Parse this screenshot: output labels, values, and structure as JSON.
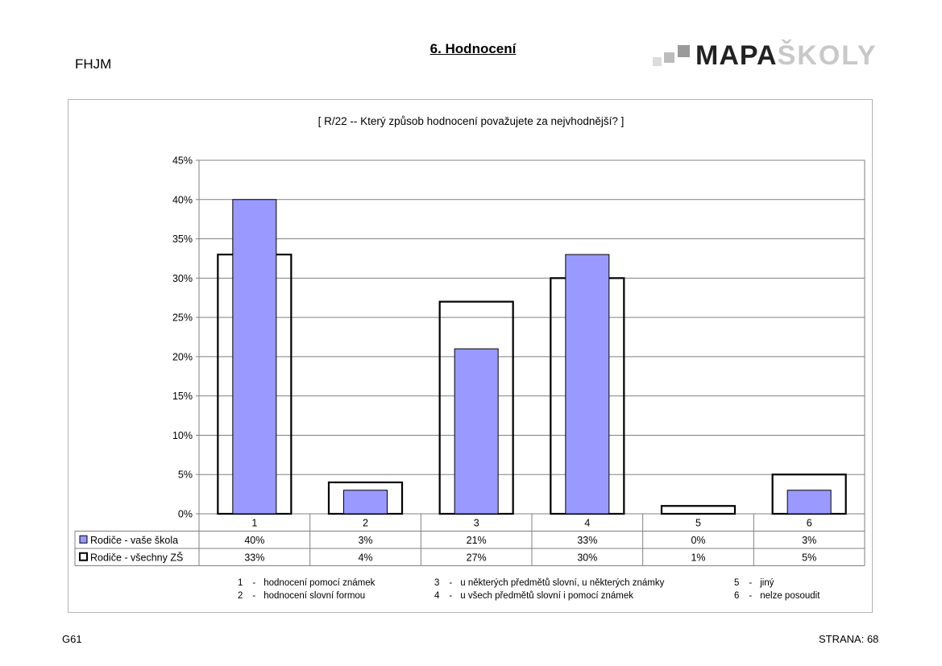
{
  "header": {
    "code": "FHJM",
    "title": "6. Hodnocení",
    "logo_dark": "MAPA",
    "logo_light": "ŠKOLY"
  },
  "chart_data": {
    "type": "bar",
    "title": "[ R/22 -- Který způsob hodnocení považujete za nejvhodnější? ]",
    "categories": [
      "1",
      "2",
      "3",
      "4",
      "5",
      "6"
    ],
    "series": [
      {
        "name": "Rodiče - vaše škola",
        "values": [
          40,
          3,
          21,
          33,
          0,
          3
        ],
        "labels": [
          "40%",
          "3%",
          "21%",
          "33%",
          "0%",
          "3%"
        ],
        "color": "#9999ff"
      },
      {
        "name": "Rodiče - všechny ZŠ",
        "values": [
          33,
          4,
          27,
          30,
          1,
          5
        ],
        "labels": [
          "33%",
          "4%",
          "27%",
          "30%",
          "1%",
          "5%"
        ],
        "color": "#000000"
      }
    ],
    "ylim": [
      0,
      45
    ],
    "yticks": [
      "0%",
      "5%",
      "10%",
      "15%",
      "20%",
      "25%",
      "30%",
      "35%",
      "40%",
      "45%"
    ],
    "grid": true,
    "legend": "data-table"
  },
  "notes": [
    {
      "num": "1",
      "dash": "-",
      "text": "hodnocení pomocí známek"
    },
    {
      "num": "2",
      "dash": "-",
      "text": "hodnocení slovní formou"
    },
    {
      "num": "3",
      "dash": "-",
      "text": "u některých předmětů slovní, u některých známky"
    },
    {
      "num": "4",
      "dash": "-",
      "text": "u všech předmětů slovní i pomocí známek"
    },
    {
      "num": "5",
      "dash": "-",
      "text": "jiný"
    },
    {
      "num": "6",
      "dash": "-",
      "text": "nelze posoudit"
    }
  ],
  "footer": {
    "left": "G61",
    "right": "STRANA: 68"
  }
}
